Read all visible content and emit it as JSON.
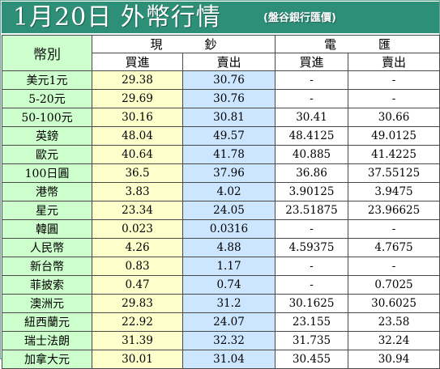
{
  "header": {
    "title": "1月20日 外幣行情",
    "subtitle": "(盤谷銀行匯價)"
  },
  "table": {
    "corner_label": "幣別",
    "cash_label": "現鈔",
    "remit_label": "電匯",
    "buy_label": "買進",
    "sell_label": "賣出",
    "rows": [
      {
        "currency": "美元1元",
        "cash_buy": "29.38",
        "cash_sell": "30.76",
        "remit_buy": "-",
        "remit_sell": "-"
      },
      {
        "currency": "5-20元",
        "cash_buy": "29.69",
        "cash_sell": "30.76",
        "remit_buy": "-",
        "remit_sell": "-"
      },
      {
        "currency": "50-100元",
        "cash_buy": "30.16",
        "cash_sell": "30.81",
        "remit_buy": "30.41",
        "remit_sell": "30.66"
      },
      {
        "currency": "英鎊",
        "cash_buy": "48.04",
        "cash_sell": "49.57",
        "remit_buy": "48.4125",
        "remit_sell": "49.0125"
      },
      {
        "currency": "歐元",
        "cash_buy": "40.64",
        "cash_sell": "41.78",
        "remit_buy": "40.885",
        "remit_sell": "41.4225"
      },
      {
        "currency": "100日圓",
        "cash_buy": "36.5",
        "cash_sell": "37.96",
        "remit_buy": "36.86",
        "remit_sell": "37.55125"
      },
      {
        "currency": "港幣",
        "cash_buy": "3.83",
        "cash_sell": "4.02",
        "remit_buy": "3.90125",
        "remit_sell": "3.9475"
      },
      {
        "currency": "星元",
        "cash_buy": "23.34",
        "cash_sell": "24.05",
        "remit_buy": "23.51875",
        "remit_sell": "23.96625"
      },
      {
        "currency": "韓圓",
        "cash_buy": "0.023",
        "cash_sell": "0.0316",
        "remit_buy": "-",
        "remit_sell": "-"
      },
      {
        "currency": "人民幣",
        "cash_buy": "4.26",
        "cash_sell": "4.88",
        "remit_buy": "4.59375",
        "remit_sell": "4.7675"
      },
      {
        "currency": "新台幣",
        "cash_buy": "0.83",
        "cash_sell": "1.17",
        "remit_buy": "-",
        "remit_sell": "-"
      },
      {
        "currency": "菲披索",
        "cash_buy": "0.47",
        "cash_sell": "0.74",
        "remit_buy": "-",
        "remit_sell": "0.7025"
      },
      {
        "currency": "澳洲元",
        "cash_buy": "29.83",
        "cash_sell": "31.2",
        "remit_buy": "30.1625",
        "remit_sell": "30.6025"
      },
      {
        "currency": "紐西蘭元",
        "cash_buy": "22.92",
        "cash_sell": "24.07",
        "remit_buy": "23.155",
        "remit_sell": "23.58"
      },
      {
        "currency": "瑞士法朗",
        "cash_buy": "31.39",
        "cash_sell": "32.32",
        "remit_buy": "31.735",
        "remit_sell": "32.24"
      },
      {
        "currency": "加拿大元",
        "cash_buy": "30.01",
        "cash_sell": "31.04",
        "remit_buy": "30.455",
        "remit_sell": "30.94"
      }
    ]
  },
  "colors": {
    "header_bg": "#2e8f79",
    "currency_bg": "#ccffcc",
    "cash_buy_bg": "#ffffcc",
    "cash_sell_bg": "#cce6ff"
  }
}
